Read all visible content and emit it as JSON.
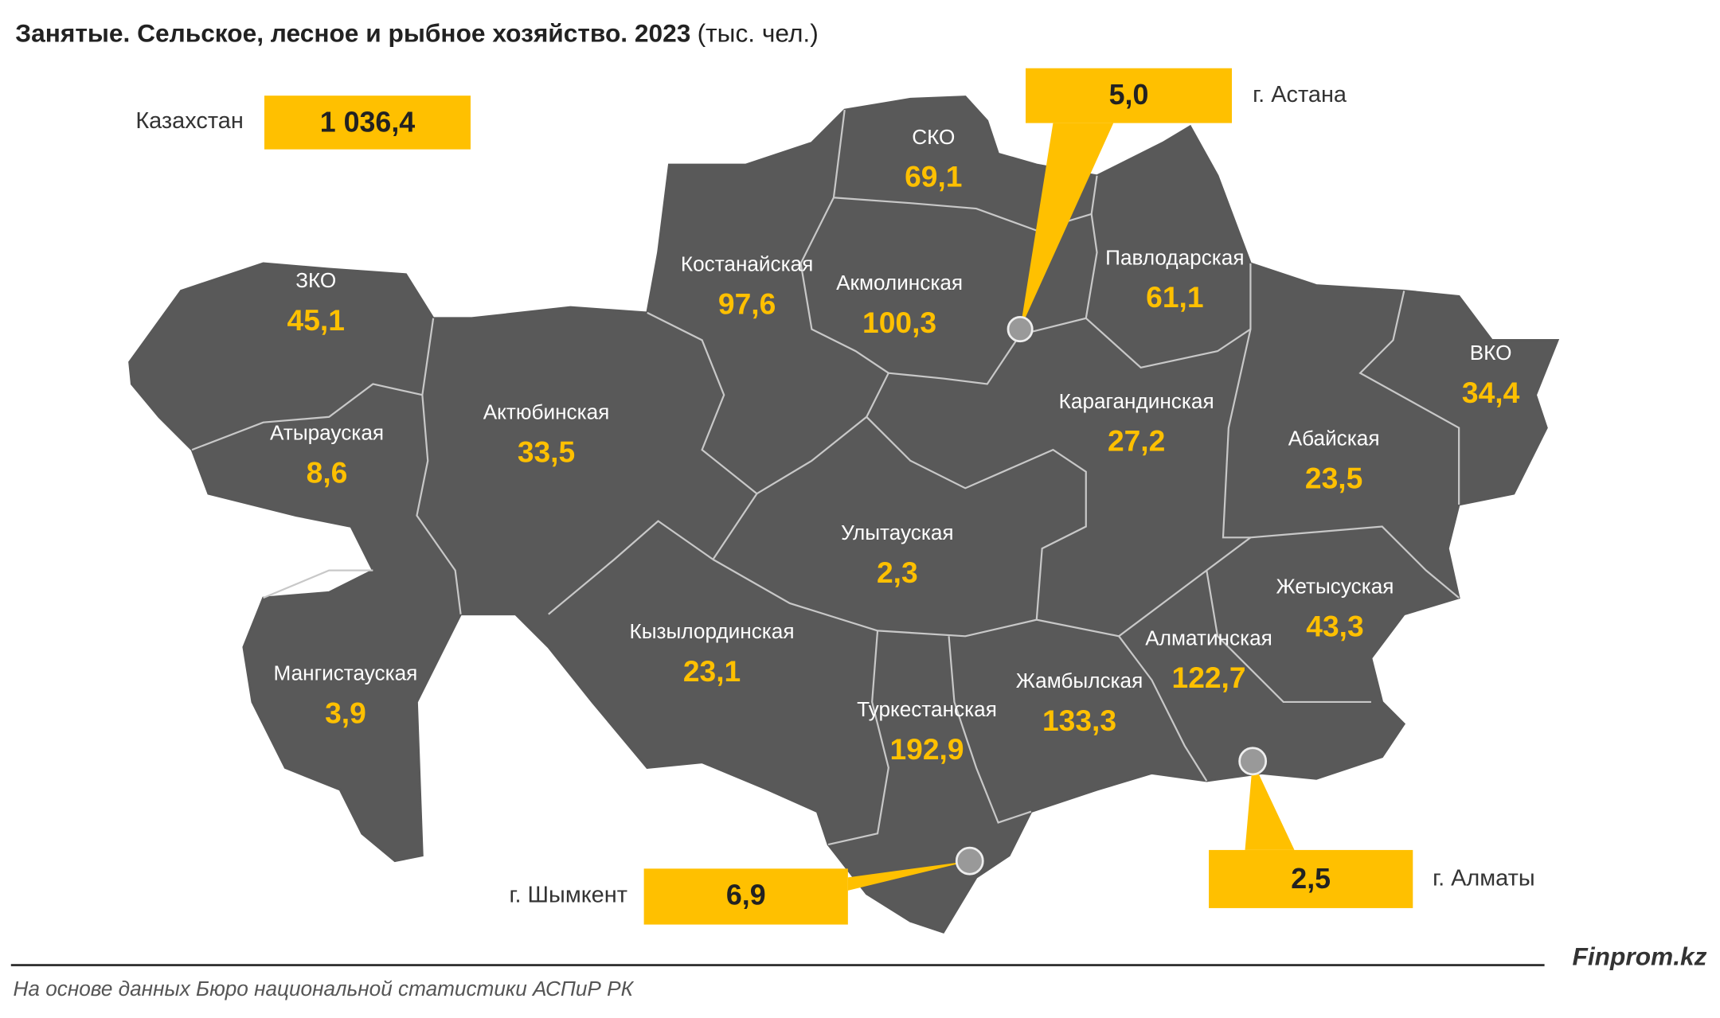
{
  "header": {
    "title": "Занятые. Сельское, лесное и рыбное хозяйство. 2023",
    "unit": "(тыс. чел.)"
  },
  "total": {
    "label": "Казахстан",
    "value": "1 036,4"
  },
  "regions": [
    {
      "name": "СКО",
      "value": "69,1"
    },
    {
      "name": "Костанайская",
      "value": "97,6"
    },
    {
      "name": "Акмолинская",
      "value": "100,3"
    },
    {
      "name": "Павлодарская",
      "value": "61,1"
    },
    {
      "name": "ЗКО",
      "value": "45,1"
    },
    {
      "name": "ВКО",
      "value": "34,4"
    },
    {
      "name": "Атырауская",
      "value": "8,6"
    },
    {
      "name": "Актюбинская",
      "value": "33,5"
    },
    {
      "name": "Карагандинская",
      "value": "27,2"
    },
    {
      "name": "Абайская",
      "value": "23,5"
    },
    {
      "name": "Улытауская",
      "value": "2,3"
    },
    {
      "name": "Жетысуская",
      "value": "43,3"
    },
    {
      "name": "Кызылординская",
      "value": "23,1"
    },
    {
      "name": "Алматинская",
      "value": "122,7"
    },
    {
      "name": "Мангистауская",
      "value": "3,9"
    },
    {
      "name": "Жамбылская",
      "value": "133,3"
    },
    {
      "name": "Туркестанская",
      "value": "192,9"
    }
  ],
  "cities": [
    {
      "name": "г. Астана",
      "value": "5,0"
    },
    {
      "name": "г. Алматы",
      "value": "2,5"
    },
    {
      "name": "г. Шымкент",
      "value": "6,9"
    }
  ],
  "footer": {
    "brand": "Finprom.kz",
    "source": "На основе данных Бюро национальной статистики АСПиР РК"
  }
}
